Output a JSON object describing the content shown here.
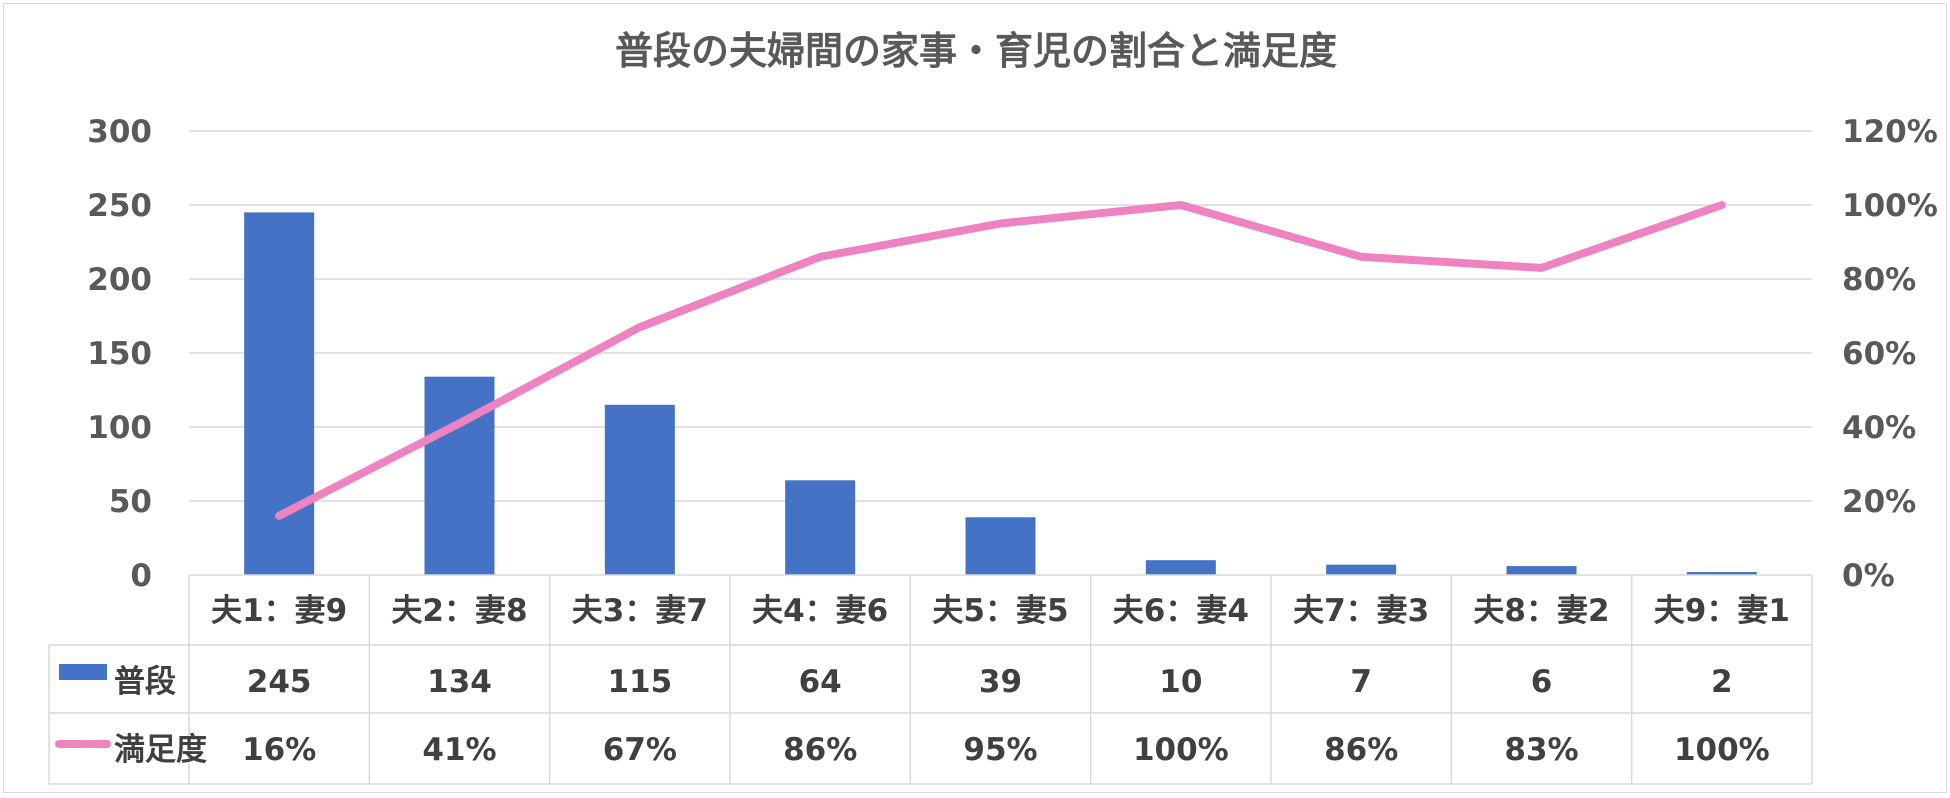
{
  "chart_data": {
    "type": "bar",
    "title": "普段の夫婦間の家事・育児の割合と満足度",
    "categories": [
      "夫1：妻9",
      "夫2：妻8",
      "夫3：妻7",
      "夫4：妻6",
      "夫5：妻5",
      "夫6：妻4",
      "夫7：妻3",
      "夫8：妻2",
      "夫9：妻1"
    ],
    "series": [
      {
        "name": "普段",
        "type": "bar",
        "axis": "left",
        "color": "#4472c4",
        "values": [
          245,
          134,
          115,
          64,
          39,
          10,
          7,
          6,
          2
        ],
        "labels": [
          "245",
          "134",
          "115",
          "64",
          "39",
          "10",
          "7",
          "6",
          "2"
        ]
      },
      {
        "name": "満足度",
        "type": "line",
        "axis": "right",
        "color": "#ef82c0",
        "values": [
          16,
          41,
          67,
          86,
          95,
          100,
          86,
          83,
          100
        ],
        "labels": [
          "16%",
          "41%",
          "67%",
          "86%",
          "95%",
          "100%",
          "86%",
          "83%",
          "100%"
        ]
      }
    ],
    "y_left": {
      "min": 0,
      "max": 300,
      "ticks": [
        0,
        50,
        100,
        150,
        200,
        250,
        300
      ],
      "tick_labels": [
        "0",
        "50",
        "100",
        "150",
        "200",
        "250",
        "300"
      ]
    },
    "y_right": {
      "min": 0,
      "max": 120,
      "ticks": [
        0,
        20,
        40,
        60,
        80,
        100,
        120
      ],
      "tick_labels": [
        "0%",
        "20%",
        "40%",
        "60%",
        "80%",
        "100%",
        "120%"
      ]
    },
    "grid": true,
    "legend": "data-table",
    "data_table": true
  }
}
